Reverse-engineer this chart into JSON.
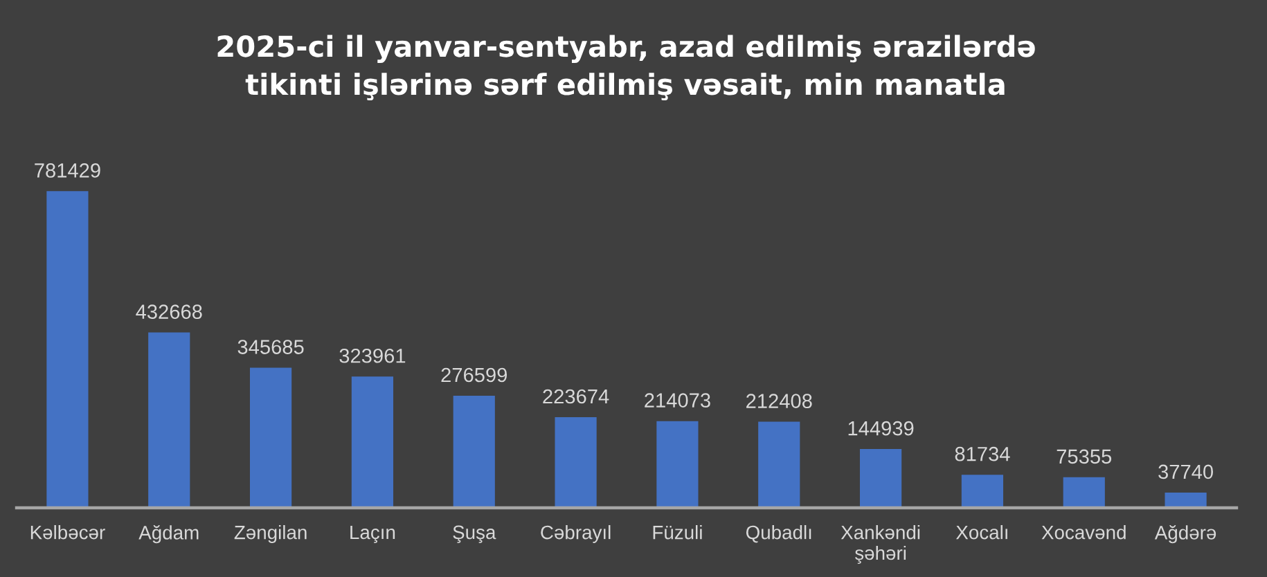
{
  "chart_data": {
    "type": "bar",
    "title": "2025-ci il yanvar-sentyabr, azad edilmiş ərazilərdə\ntikinti işlərinə sərf edilmiş vəsait, min manatla",
    "categories": [
      "Kəlbəcər",
      "Ağdam",
      "Zəngilan",
      "Laçın",
      "Şuşa",
      "Cəbrayıl",
      "Füzuli",
      "Qubadlı",
      "Xankəndi\nşəhəri",
      "Xocalı",
      "Xocavənd",
      "Ağdərə"
    ],
    "values": [
      781429,
      432668,
      345685,
      323961,
      276599,
      223674,
      214073,
      212408,
      144939,
      81734,
      75355,
      37740
    ],
    "color": "#4472c4",
    "data_labels": true
  }
}
